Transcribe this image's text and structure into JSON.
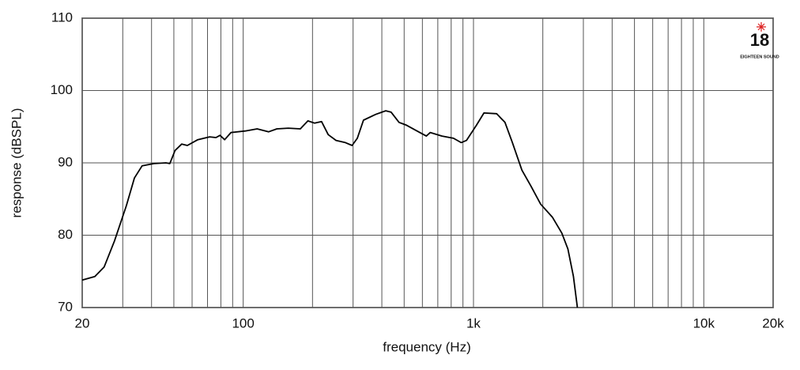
{
  "chart_data": {
    "type": "line",
    "x_label": "frequency (Hz)",
    "y_label": "response (dBSPL)",
    "log_x": true,
    "grid": true,
    "color": "#000000",
    "logo": {
      "mark": "18",
      "text": "EIGHTEEN SOUND"
    },
    "xlim": [
      20,
      20000
    ],
    "ylim": [
      70,
      110
    ],
    "xticks": [
      20,
      100,
      {
        "value": 1000,
        "label": "1k"
      },
      {
        "value": 10000,
        "label": "10k"
      },
      {
        "value": 20000,
        "label": "20k"
      }
    ],
    "x_minor_ticks": [
      30,
      40,
      50,
      60,
      70,
      80,
      90,
      200,
      300,
      400,
      500,
      600,
      700,
      800,
      900,
      2000,
      3000,
      4000,
      5000,
      6000,
      7000,
      8000,
      9000
    ],
    "yticks": [
      70,
      80,
      90,
      100,
      110
    ],
    "x": [
      20,
      22.7,
      24.9,
      27.6,
      31.1,
      33.7,
      36.4,
      41,
      46.2,
      48,
      50.6,
      54.1,
      57.2,
      63.5,
      71.5,
      76.2,
      79.3,
      83.1,
      88.5,
      102,
      115,
      129,
      140,
      157,
      177,
      191,
      204,
      219,
      234,
      253,
      278,
      297,
      313,
      333,
      376,
      416,
      439,
      475,
      512,
      577,
      624,
      649,
      730,
      819,
      884,
      932,
      1030,
      1110,
      1260,
      1370,
      1476,
      1622,
      1775,
      1957,
      2199,
      2418,
      2571,
      2717,
      2826
    ],
    "values": [
      73.8,
      74.3,
      75.6,
      79.2,
      84.1,
      87.9,
      89.6,
      89.9,
      90.0,
      89.9,
      91.7,
      92.6,
      92.4,
      93.2,
      93.6,
      93.5,
      93.8,
      93.2,
      94.2,
      94.4,
      94.7,
      94.3,
      94.7,
      94.8,
      94.7,
      95.8,
      95.5,
      95.7,
      93.9,
      93.1,
      92.8,
      92.4,
      93.4,
      95.9,
      96.7,
      97.2,
      97.0,
      95.6,
      95.2,
      94.3,
      93.7,
      94.2,
      93.7,
      93.4,
      92.8,
      93.1,
      95.2,
      96.9,
      96.8,
      95.6,
      92.8,
      89.0,
      86.8,
      84.3,
      82.5,
      80.3,
      78.1,
      74.3,
      70.0
    ]
  }
}
